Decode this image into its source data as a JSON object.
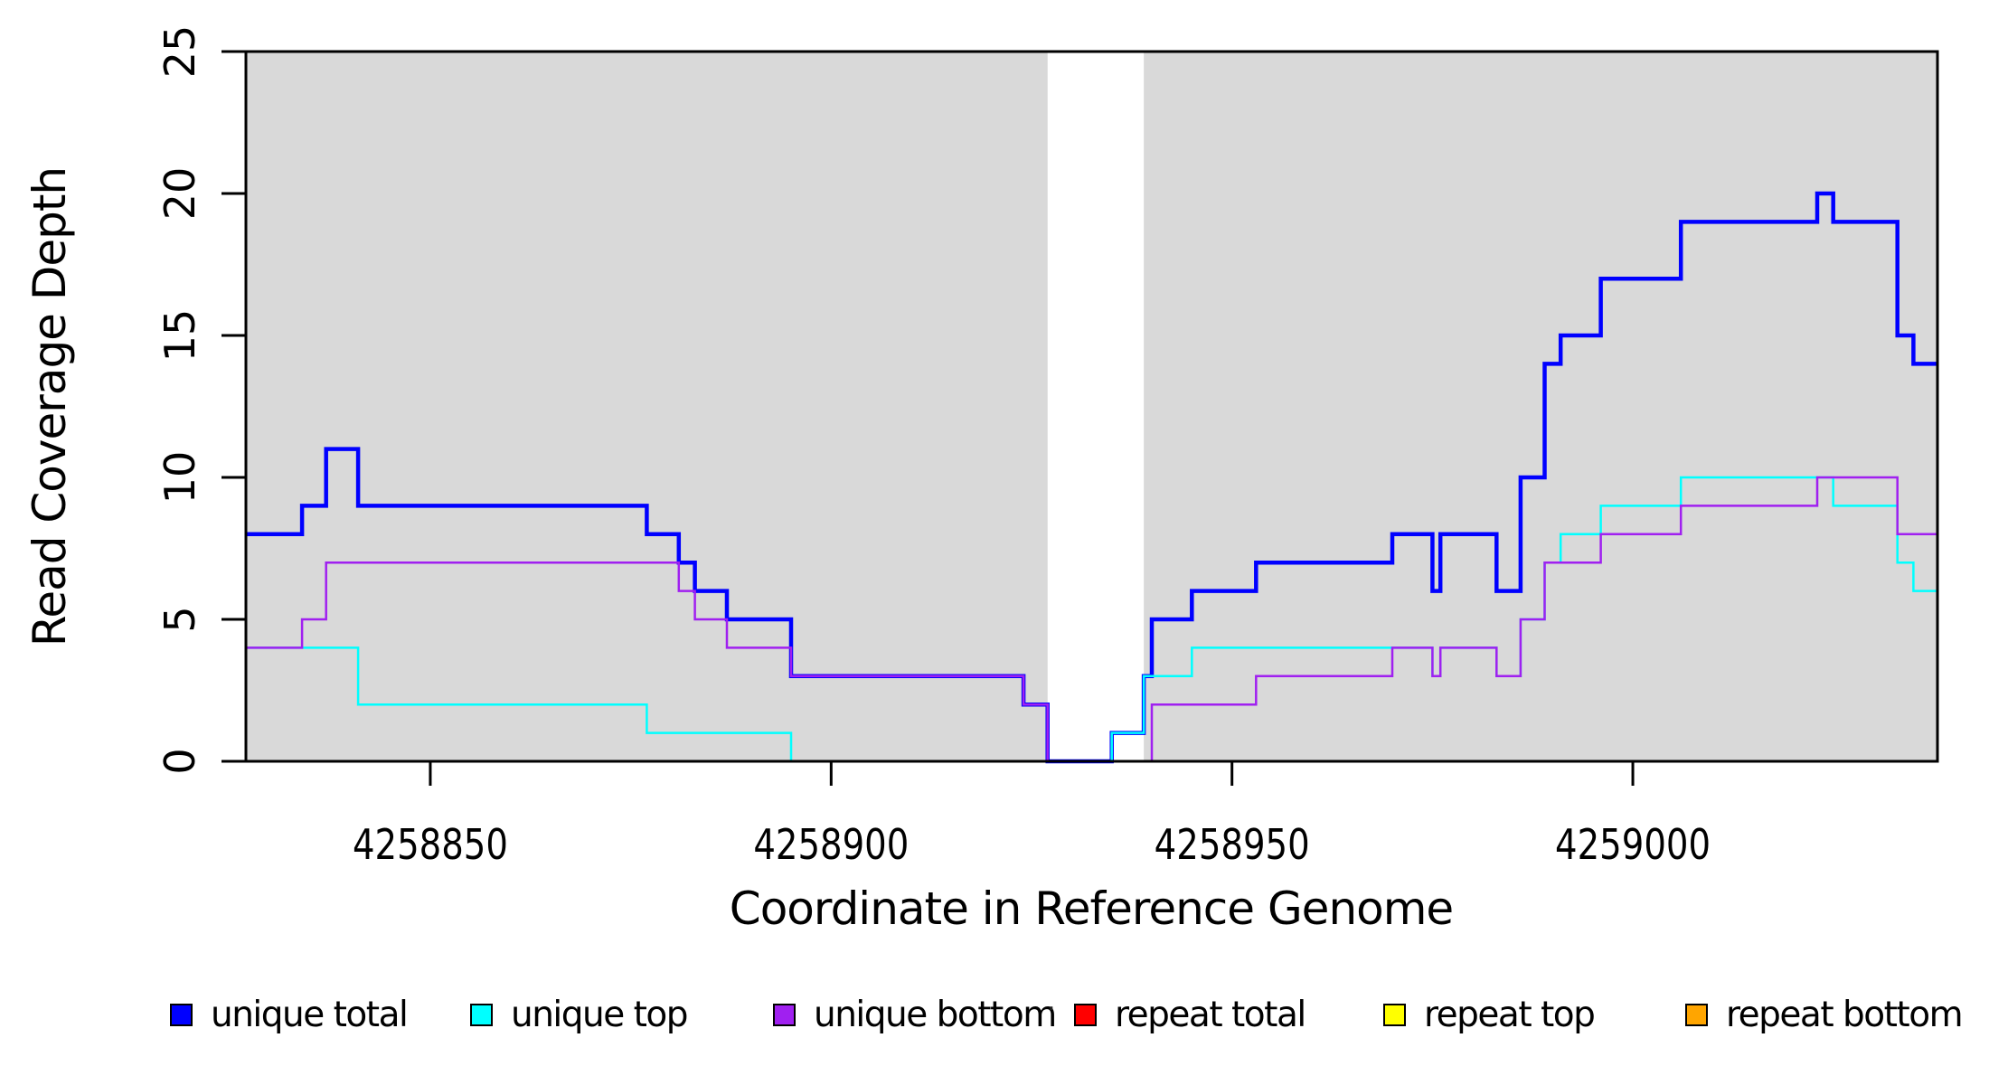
{
  "figure": {
    "xlabel": "Coordinate in Reference Genome",
    "ylabel": "Read Coverage Depth",
    "stray_mark": "."
  },
  "legend": {
    "items": [
      {
        "label": "unique total",
        "color": "#0000FF"
      },
      {
        "label": "unique top",
        "color": "#00FFFF"
      },
      {
        "label": "unique bottom",
        "color": "#A020F0"
      },
      {
        "label": "repeat total",
        "color": "#FF0000"
      },
      {
        "label": "repeat top",
        "color": "#FFFF00"
      },
      {
        "label": "repeat bottom",
        "color": "#FFA500"
      }
    ]
  },
  "chart_data": {
    "type": "line",
    "subtype": "step-coverage",
    "title": "",
    "xlabel": "Coordinate in Reference Genome",
    "ylabel": "Read Coverage Depth",
    "xlim": [
      4258827,
      4259038
    ],
    "ylim": [
      0,
      25
    ],
    "x_ticks": [
      4258850,
      4258900,
      4258950,
      4259000
    ],
    "x_tick_labels": [
      "4258850",
      "4258900",
      "4258950",
      "4259000"
    ],
    "y_ticks": [
      0,
      5,
      10,
      15,
      20,
      25
    ],
    "y_tick_labels": [
      "0",
      "5",
      "10",
      "15",
      "20",
      "25"
    ],
    "grid": false,
    "legend_position": "bottom",
    "panel_background": "#FFFFFF",
    "shaded_region_color": "#D9D9D9",
    "shaded_regions": [
      {
        "x_start": 4258827,
        "x_end": 4258927
      },
      {
        "x_start": 4258939,
        "x_end": 4259038
      }
    ],
    "series": [
      {
        "name": "unique total",
        "color": "#0000FF",
        "line_width": 4.5,
        "points": [
          [
            4258827,
            8
          ],
          [
            4258834,
            9
          ],
          [
            4258837,
            11
          ],
          [
            4258841,
            9
          ],
          [
            4258877,
            8
          ],
          [
            4258881,
            7
          ],
          [
            4258883,
            6
          ],
          [
            4258887,
            5
          ],
          [
            4258895,
            3
          ],
          [
            4258924,
            2
          ],
          [
            4258927,
            0
          ],
          [
            4258935,
            1
          ],
          [
            4258939,
            3
          ],
          [
            4258940,
            5
          ],
          [
            4258945,
            6
          ],
          [
            4258953,
            7
          ],
          [
            4258970,
            8
          ],
          [
            4258975,
            6
          ],
          [
            4258976,
            8
          ],
          [
            4258983,
            6
          ],
          [
            4258986,
            10
          ],
          [
            4258989,
            14
          ],
          [
            4258991,
            15
          ],
          [
            4258996,
            17
          ],
          [
            4259006,
            19
          ],
          [
            4259023,
            20
          ],
          [
            4259025,
            19
          ],
          [
            4259033,
            15
          ],
          [
            4259035,
            14
          ]
        ]
      },
      {
        "name": "unique top",
        "color": "#00FFFF",
        "line_width": 2.5,
        "points": [
          [
            4258827,
            4
          ],
          [
            4258841,
            2
          ],
          [
            4258877,
            1
          ],
          [
            4258895,
            0
          ],
          [
            4258935,
            1
          ],
          [
            4258939,
            3
          ],
          [
            4258945,
            4
          ],
          [
            4258975,
            3
          ],
          [
            4258976,
            4
          ],
          [
            4258983,
            3
          ],
          [
            4258986,
            5
          ],
          [
            4258989,
            7
          ],
          [
            4258991,
            8
          ],
          [
            4258996,
            9
          ],
          [
            4259006,
            10
          ],
          [
            4259025,
            9
          ],
          [
            4259033,
            7
          ],
          [
            4259035,
            6
          ]
        ]
      },
      {
        "name": "unique bottom",
        "color": "#A020F0",
        "line_width": 2.5,
        "points": [
          [
            4258827,
            4
          ],
          [
            4258834,
            5
          ],
          [
            4258837,
            7
          ],
          [
            4258881,
            6
          ],
          [
            4258883,
            5
          ],
          [
            4258887,
            4
          ],
          [
            4258895,
            3
          ],
          [
            4258924,
            2
          ],
          [
            4258927,
            0
          ],
          [
            4258940,
            2
          ],
          [
            4258953,
            3
          ],
          [
            4258970,
            4
          ],
          [
            4258975,
            3
          ],
          [
            4258976,
            4
          ],
          [
            4258983,
            3
          ],
          [
            4258986,
            5
          ],
          [
            4258989,
            7
          ],
          [
            4258996,
            8
          ],
          [
            4259006,
            9
          ],
          [
            4259023,
            10
          ],
          [
            4259033,
            8
          ]
        ]
      },
      {
        "name": "repeat total",
        "color": "#FF0000",
        "line_width": 2.5,
        "points": [
          [
            4258827,
            0
          ]
        ]
      },
      {
        "name": "repeat top",
        "color": "#FFFF00",
        "line_width": 2.5,
        "points": [
          [
            4258827,
            0
          ]
        ]
      },
      {
        "name": "repeat bottom",
        "color": "#FFA500",
        "line_width": 3,
        "points": [
          [
            4258827,
            0
          ]
        ]
      }
    ]
  }
}
